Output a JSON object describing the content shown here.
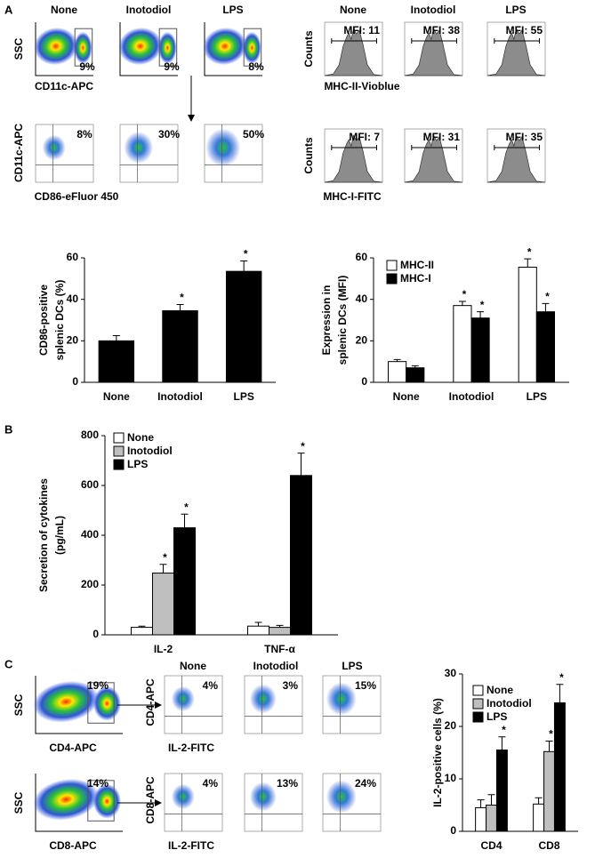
{
  "panel_labels": [
    "A",
    "B",
    "C"
  ],
  "flow_a": {
    "conditions": [
      "None",
      "Inotodiol",
      "LPS"
    ],
    "gate_y_label": "SSC",
    "gate_x_label": "CD11c-APC",
    "gate_percents": [
      "9%",
      "9%",
      "8%"
    ],
    "cd86_y_label": "CD11c-APC",
    "cd86_x_label": "CD86-eFluor 450",
    "cd86_percents": [
      "8%",
      "30%",
      "50%"
    ]
  },
  "hist_a": {
    "conditions": [
      "None",
      "Inotodiol",
      "LPS"
    ],
    "y_label": "Counts",
    "mhc2_x_label": "MHC-II-Vioblue",
    "mhc2_mfi": [
      "MFI: 11",
      "MFI: 38",
      "MFI: 55"
    ],
    "mhc1_x_label": "MHC-I-FITC",
    "mhc1_mfi": [
      "MFI: 7",
      "MFI: 31",
      "MFI: 35"
    ]
  },
  "flow_c": {
    "conditions": [
      "None",
      "Inotodiol",
      "LPS"
    ],
    "gate_y_label": "SSC",
    "cd4_gate_x_label": "CD4-APC",
    "cd4_gate_percent": "19%",
    "cd8_gate_x_label": "CD8-APC",
    "cd8_gate_percent": "14%",
    "cd4_y_label": "CD4-APC",
    "cd8_y_label": "CD8-APC",
    "il2_x_label": "IL-2-FITC",
    "cd4_percents": [
      "4%",
      "3%",
      "15%"
    ],
    "cd8_percents": [
      "4%",
      "13%",
      "24%"
    ]
  },
  "chart_data": [
    {
      "type": "bar",
      "ylabel": [
        "CD86-positive",
        "splenic DCs (%)"
      ],
      "categories": [
        "None",
        "Inotodiol",
        "LPS"
      ],
      "values": [
        20,
        34.5,
        53.5
      ],
      "errors": [
        2.5,
        3,
        5
      ],
      "significance": [
        null,
        "*",
        "*"
      ],
      "color": "#000000",
      "ylim": [
        0,
        60
      ],
      "yticks": [
        0,
        20,
        40,
        60
      ]
    },
    {
      "type": "bar",
      "ylabel": [
        "Expression in",
        "splenic DCs (MFI)"
      ],
      "categories": [
        "None",
        "Inotodiol",
        "LPS"
      ],
      "series": [
        {
          "name": "MHC-II",
          "color": "#ffffff",
          "values": [
            10,
            37,
            55.5
          ],
          "errors": [
            1,
            2,
            4
          ],
          "significance": [
            null,
            "*",
            "*"
          ]
        },
        {
          "name": "MHC-I",
          "color": "#000000",
          "values": [
            7,
            31,
            34
          ],
          "errors": [
            1,
            3,
            4
          ],
          "significance": [
            null,
            "*",
            "*"
          ]
        }
      ],
      "ylim": [
        0,
        60
      ],
      "yticks": [
        0,
        20,
        40,
        60
      ],
      "legend": "top-left"
    },
    {
      "type": "bar",
      "ylabel": [
        "Secretion of cytokines",
        "(pg/mL)"
      ],
      "categories": [
        "IL-2",
        "TNF-α"
      ],
      "series": [
        {
          "name": "None",
          "color": "#ffffff",
          "values": [
            30,
            35
          ],
          "errors": [
            5,
            15
          ],
          "significance": [
            null,
            null
          ]
        },
        {
          "name": "Inotodiol",
          "color": "#bfbfbf",
          "values": [
            248,
            30
          ],
          "errors": [
            35,
            8
          ],
          "significance": [
            "*",
            null
          ]
        },
        {
          "name": "LPS",
          "color": "#000000",
          "values": [
            430,
            640
          ],
          "errors": [
            55,
            90
          ],
          "significance": [
            "*",
            "*"
          ]
        }
      ],
      "ylim": [
        0,
        800
      ],
      "yticks": [
        0,
        200,
        400,
        600,
        800
      ],
      "legend": "top-left"
    },
    {
      "type": "bar",
      "ylabel": [
        "IL-2-positive cells (%)"
      ],
      "categories": [
        "CD4",
        "CD8"
      ],
      "series": [
        {
          "name": "None",
          "color": "#ffffff",
          "values": [
            4.5,
            5.2
          ],
          "errors": [
            1.5,
            1.2
          ],
          "significance": [
            null,
            null
          ]
        },
        {
          "name": "Inotodiol",
          "color": "#bfbfbf",
          "values": [
            5,
            15.2
          ],
          "errors": [
            2,
            2
          ],
          "significance": [
            null,
            "*"
          ]
        },
        {
          "name": "LPS",
          "color": "#000000",
          "values": [
            15.5,
            24.5
          ],
          "errors": [
            2.5,
            3.5
          ],
          "significance": [
            "*",
            "*"
          ]
        }
      ],
      "ylim": [
        0,
        30
      ],
      "yticks": [
        0,
        10,
        20,
        30
      ],
      "legend": "top-left"
    }
  ]
}
